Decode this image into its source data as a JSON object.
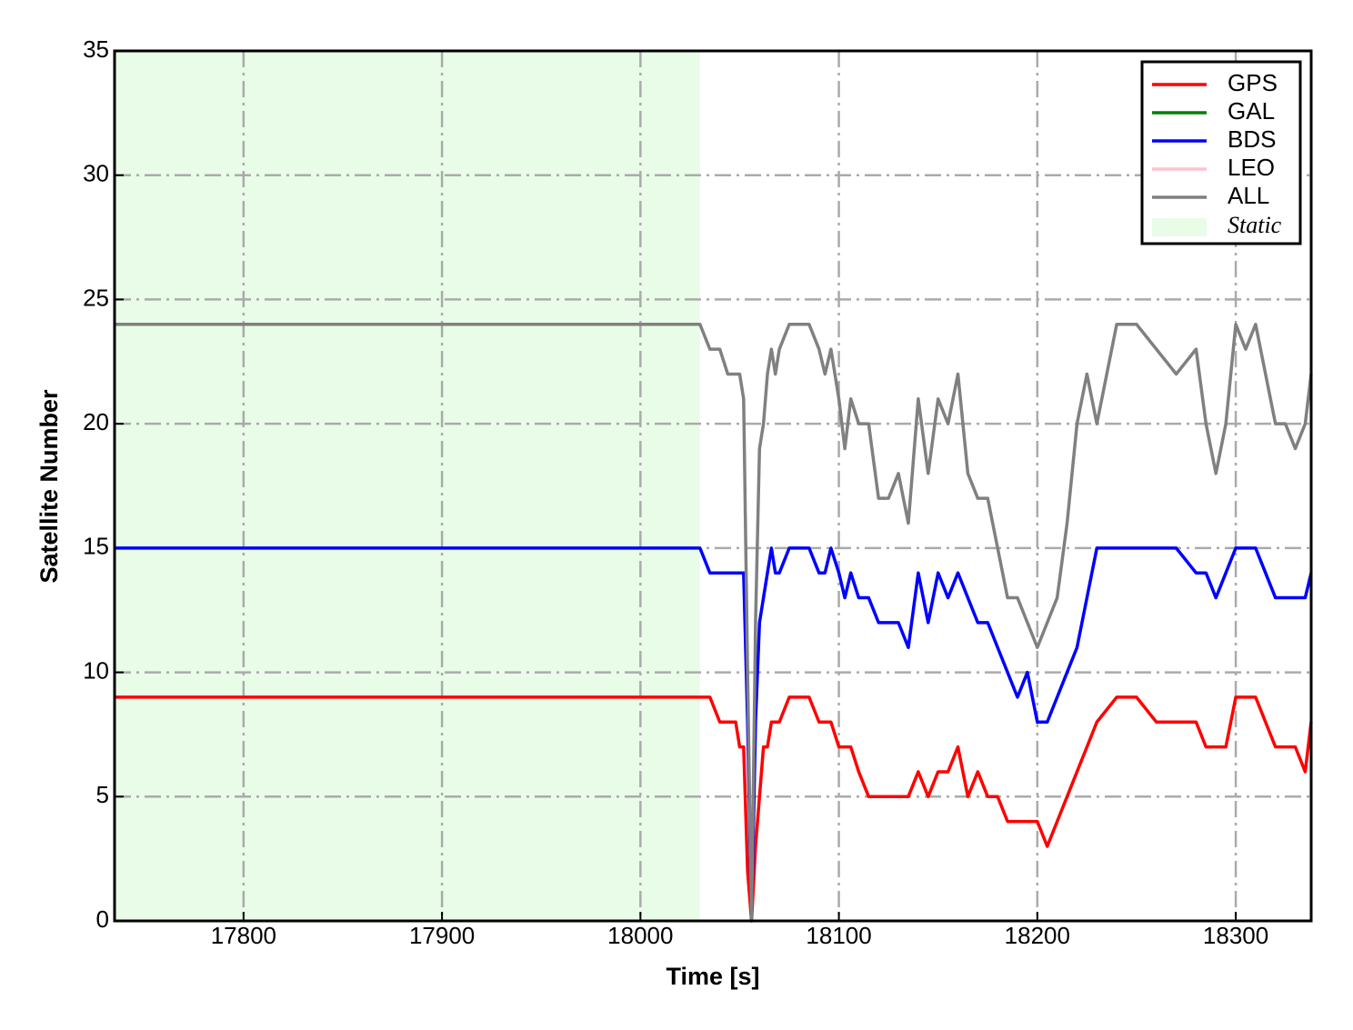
{
  "chart_data": {
    "type": "line",
    "x_label": "Time [s]",
    "y_label": "Satellite Number",
    "xlim": [
      17735,
      18338
    ],
    "ylim": [
      0,
      35
    ],
    "xticks": [
      17800,
      17900,
      18000,
      18100,
      18200,
      18300
    ],
    "yticks": [
      0,
      5,
      10,
      15,
      20,
      25,
      30,
      35
    ],
    "grid": true,
    "legend": "upper right",
    "shaded_region": {
      "label": "Static",
      "xrange": [
        17735,
        18030
      ],
      "color": "#e8fce8"
    },
    "x": [
      17735,
      18030,
      18035,
      18040,
      18044,
      18048,
      18050,
      18052,
      18054,
      18056,
      18058,
      18060,
      18062,
      18064,
      18066,
      18068,
      18070,
      18075,
      18080,
      18085,
      18090,
      18093,
      18096,
      18100,
      18103,
      18106,
      18110,
      18115,
      18120,
      18125,
      18130,
      18135,
      18140,
      18145,
      18150,
      18155,
      18160,
      18165,
      18170,
      18175,
      18180,
      18185,
      18190,
      18195,
      18200,
      18205,
      18210,
      18215,
      18220,
      18225,
      18230,
      18240,
      18250,
      18260,
      18270,
      18280,
      18285,
      18290,
      18295,
      18300,
      18305,
      18310,
      18315,
      18320,
      18325,
      18330,
      18335,
      18338
    ],
    "series": [
      {
        "name": "GPS",
        "color": "#ff0000",
        "values": [
          9,
          9,
          9,
          8,
          8,
          8,
          7,
          7,
          2,
          0,
          3,
          5,
          7,
          7,
          8,
          8,
          8,
          9,
          9,
          9,
          8,
          8,
          8,
          7,
          7,
          7,
          6,
          5,
          5,
          5,
          5,
          5,
          6,
          5,
          6,
          6,
          7,
          5,
          6,
          5,
          5,
          4,
          4,
          4,
          4,
          3,
          4,
          5,
          6,
          7,
          8,
          9,
          9,
          8,
          8,
          8,
          7,
          7,
          7,
          9,
          9,
          9,
          8,
          7,
          7,
          7,
          6,
          8
        ]
      },
      {
        "name": "GAL",
        "color": "#008000",
        "values": [
          null,
          null,
          null,
          null,
          null,
          null,
          null,
          null,
          null,
          null,
          null,
          null,
          null,
          null,
          null,
          null,
          null,
          null,
          null,
          null,
          null,
          null,
          null,
          null,
          null,
          null,
          null,
          null,
          null,
          null,
          null,
          null,
          null,
          null,
          null,
          null,
          null,
          null,
          null,
          null,
          null,
          null,
          null,
          null,
          null,
          null,
          null,
          null,
          null,
          null,
          null,
          null,
          null,
          null,
          null,
          null,
          null,
          null,
          null,
          null,
          null,
          null,
          null,
          null,
          null,
          null,
          null,
          null
        ]
      },
      {
        "name": "BDS",
        "color": "#0000ff",
        "values": [
          15,
          15,
          14,
          14,
          14,
          14,
          14,
          14,
          8,
          0,
          8,
          12,
          13,
          14,
          15,
          14,
          14,
          15,
          15,
          15,
          14,
          14,
          15,
          14,
          13,
          14,
          13,
          13,
          12,
          12,
          12,
          11,
          14,
          12,
          14,
          13,
          14,
          13,
          12,
          12,
          11,
          10,
          9,
          10,
          8,
          8,
          9,
          10,
          11,
          13,
          15,
          15,
          15,
          15,
          15,
          14,
          14,
          13,
          14,
          15,
          15,
          15,
          14,
          13,
          13,
          13,
          13,
          14
        ]
      },
      {
        "name": "LEO",
        "color": "#ffc0cb",
        "values": [
          null,
          null,
          null,
          null,
          null,
          null,
          null,
          null,
          null,
          null,
          null,
          null,
          null,
          null,
          null,
          null,
          null,
          null,
          null,
          null,
          null,
          null,
          null,
          null,
          null,
          null,
          null,
          null,
          null,
          null,
          null,
          null,
          null,
          null,
          null,
          null,
          null,
          null,
          null,
          null,
          null,
          null,
          null,
          null,
          null,
          null,
          null,
          null,
          null,
          null,
          null,
          null,
          null,
          null,
          null,
          null,
          null,
          null,
          null,
          null,
          null,
          null,
          null,
          null,
          null,
          null,
          null,
          null
        ]
      },
      {
        "name": "ALL",
        "color": "#808080",
        "values": [
          24,
          24,
          23,
          23,
          22,
          22,
          22,
          21,
          10,
          0,
          12,
          19,
          20,
          22,
          23,
          22,
          23,
          24,
          24,
          24,
          23,
          22,
          23,
          21,
          19,
          21,
          20,
          20,
          17,
          17,
          18,
          16,
          21,
          18,
          21,
          20,
          22,
          18,
          17,
          17,
          15,
          13,
          13,
          12,
          11,
          12,
          13,
          16,
          20,
          22,
          20,
          24,
          24,
          23,
          22,
          23,
          20,
          18,
          20,
          24,
          23,
          24,
          22,
          20,
          20,
          19,
          20,
          22
        ]
      }
    ]
  }
}
